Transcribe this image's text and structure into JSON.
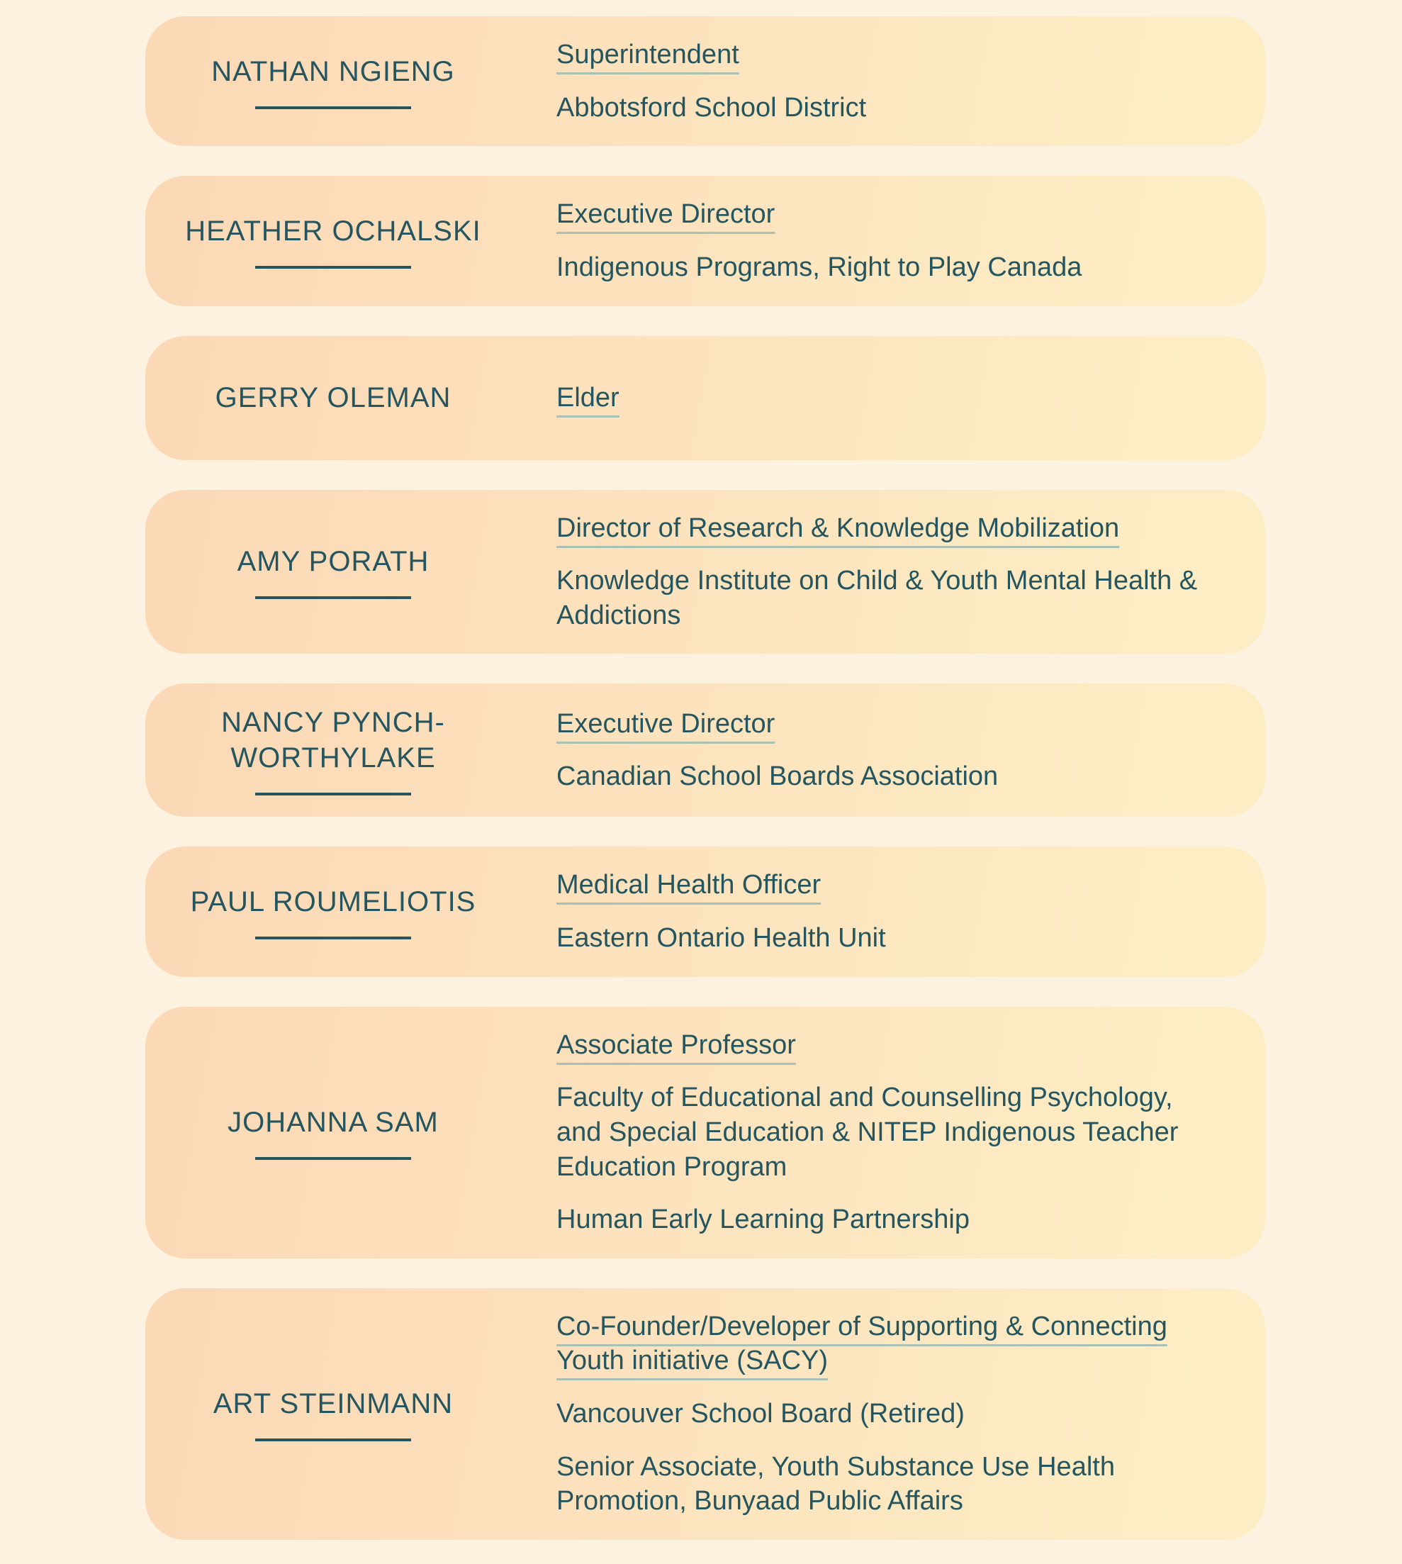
{
  "theme": {
    "page_background": "#fdf2df",
    "card_gradient_start": "#fbd8b6",
    "card_gradient_end": "#fdedc4",
    "text_color": "#25565f",
    "title_underline_color": "#a9c0b4"
  },
  "people": [
    {
      "name": "NATHAN NGIENG",
      "name_underline": true,
      "title": "Superintendent",
      "orgs": [
        "Abbotsford School District"
      ]
    },
    {
      "name": "HEATHER OCHALSKI",
      "name_underline": true,
      "title": "Executive Director",
      "orgs": [
        "Indigenous Programs, Right to Play Canada"
      ]
    },
    {
      "name": "GERRY OLEMAN",
      "name_underline": false,
      "title": "Elder",
      "orgs": []
    },
    {
      "name": "AMY PORATH",
      "name_underline": true,
      "title": "Director of Research & Knowledge Mobilization",
      "orgs": [
        "Knowledge Institute on Child & Youth Mental Health & Addictions"
      ]
    },
    {
      "name": "NANCY PYNCH-WORTHYLAKE",
      "name_underline": true,
      "title": "Executive Director",
      "orgs": [
        "Canadian School Boards Association"
      ]
    },
    {
      "name": "PAUL ROUMELIOTIS",
      "name_underline": true,
      "title": "Medical Health Officer",
      "orgs": [
        "Eastern Ontario Health Unit"
      ]
    },
    {
      "name": "JOHANNA SAM",
      "name_underline": true,
      "title": "Associate Professor",
      "orgs": [
        "Faculty of Educational and Counselling Psychology, and Special Education & NITEP Indigenous Teacher Education Program",
        "Human Early Learning Partnership"
      ]
    },
    {
      "name": "ART STEINMANN",
      "name_underline": true,
      "title": "Co-Founder/Developer of Supporting & Connecting Youth initiative (SACY)",
      "orgs": [
        "Vancouver School Board (Retired)",
        "Senior Associate, Youth Substance Use Health Promotion, Bunyaad Public Affairs"
      ]
    }
  ]
}
